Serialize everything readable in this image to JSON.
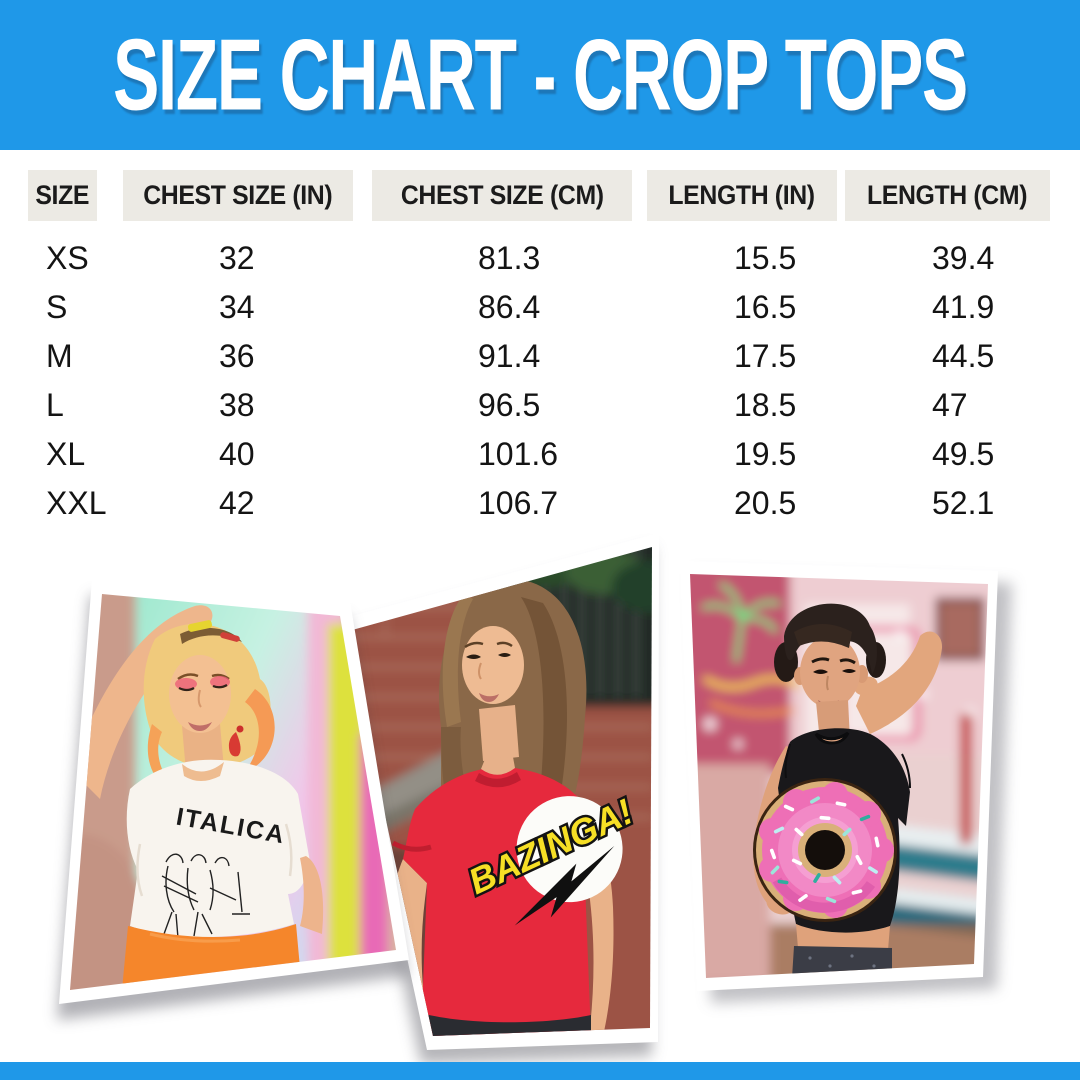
{
  "banner": {
    "title": "SIZE CHART - CROP TOPS",
    "background": "#1F98E8",
    "text_color": "#FFFFFF"
  },
  "table": {
    "columns": [
      "SIZE",
      "CHEST SIZE (IN)",
      "CHEST SIZE (CM)",
      "LENGTH (IN)",
      "LENGTH (CM)"
    ],
    "rows": [
      [
        "XS",
        "32",
        "81.3",
        "15.5",
        "39.4"
      ],
      [
        "S",
        "34",
        "86.4",
        "16.5",
        "41.9"
      ],
      [
        "M",
        "36",
        "91.4",
        "17.5",
        "44.5"
      ],
      [
        "L",
        "38",
        "96.5",
        "18.5",
        "47"
      ],
      [
        "XL",
        "40",
        "101.6",
        "19.5",
        "49.5"
      ],
      [
        "XXL",
        "42",
        "106.7",
        "20.5",
        "52.1"
      ]
    ],
    "header_bg": "#ECEAE4",
    "text_color": "#141414"
  },
  "photos": [
    {
      "label": "white crop top with band print",
      "shirt_text": "ITALICA",
      "shirt_color": "#F8F4EE"
    },
    {
      "label": "red crop top with comic logo",
      "shirt_text": "BAZINGA!",
      "shirt_color": "#E6293D"
    },
    {
      "label": "black crop top with pink donut graphic",
      "shirt_text": "",
      "shirt_color": "#19181B"
    }
  ],
  "footer": {
    "background": "#1F98E8"
  }
}
